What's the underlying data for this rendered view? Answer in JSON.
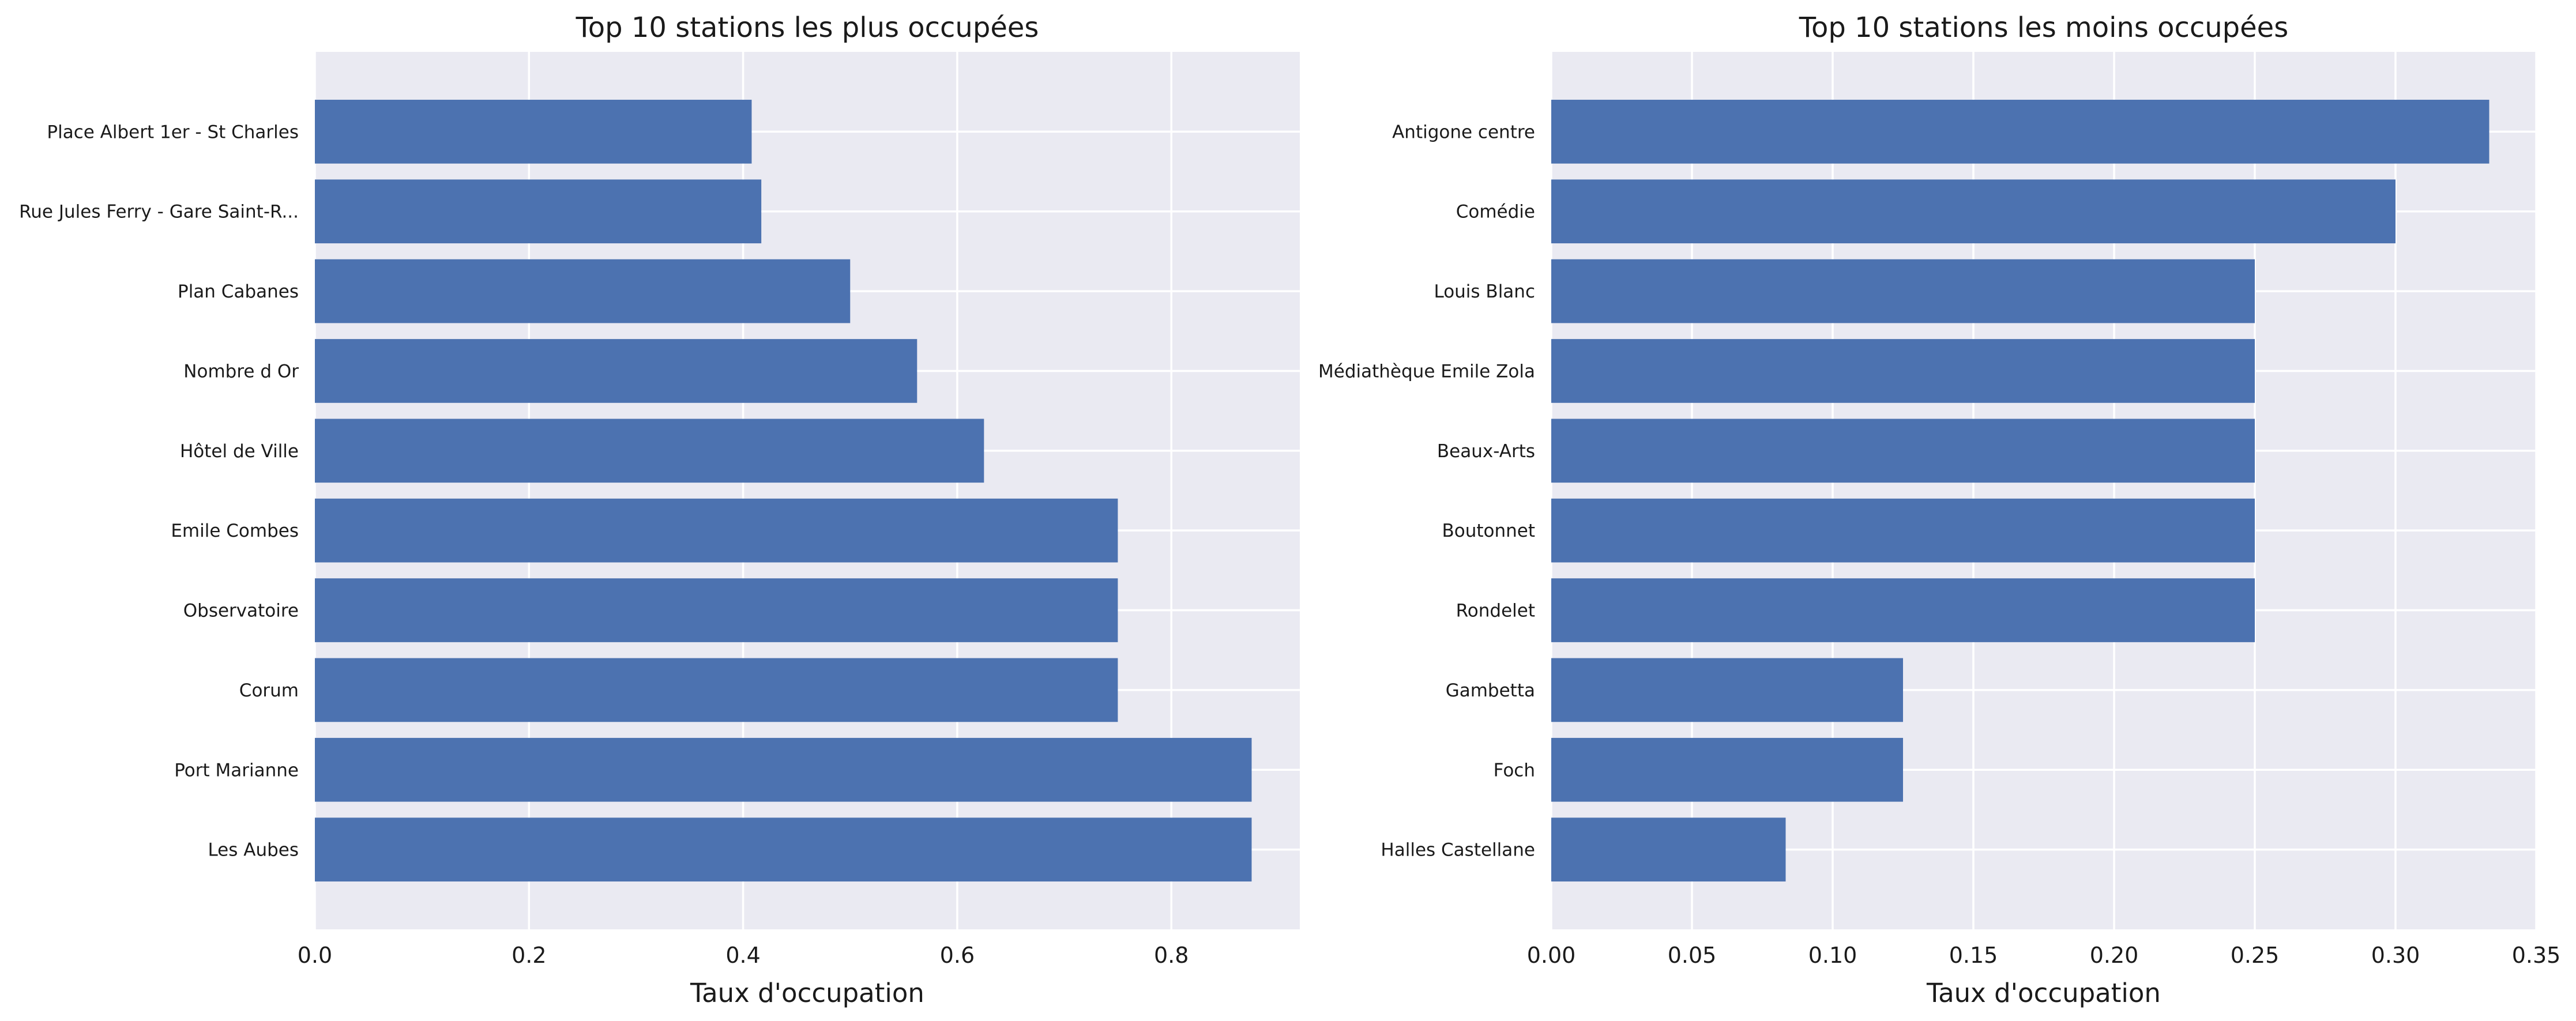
{
  "chart_data": [
    {
      "type": "bar",
      "orientation": "horizontal",
      "title": "Top 10 stations les plus occupées",
      "xlabel": "Taux d'occupation",
      "ylabel": "",
      "xlim": [
        0,
        0.92
      ],
      "xticks": [
        0.0,
        0.2,
        0.4,
        0.6,
        0.8
      ],
      "xtick_labels": [
        "0.0",
        "0.2",
        "0.4",
        "0.6",
        "0.8"
      ],
      "grid": true,
      "bar_color": "#4c72b0",
      "background_color": "#eaeaf2",
      "categories": [
        "Place Albert 1er - St Charles",
        "Rue Jules Ferry - Gare Saint-R...",
        "Plan Cabanes",
        "Nombre d Or",
        "Hôtel de Ville",
        "Emile Combes",
        "Observatoire",
        "Corum",
        "Port Marianne",
        "Les Aubes"
      ],
      "values": [
        0.408,
        0.417,
        0.5,
        0.5625,
        0.625,
        0.75,
        0.75,
        0.75,
        0.875,
        0.875
      ]
    },
    {
      "type": "bar",
      "orientation": "horizontal",
      "title": "Top 10 stations les moins occupées",
      "xlabel": "Taux d'occupation",
      "ylabel": "",
      "xlim": [
        0,
        0.35
      ],
      "xticks": [
        0.0,
        0.05,
        0.1,
        0.15,
        0.2,
        0.25,
        0.3,
        0.35
      ],
      "xtick_labels": [
        "0.00",
        "0.05",
        "0.10",
        "0.15",
        "0.20",
        "0.25",
        "0.30",
        "0.35"
      ],
      "grid": true,
      "bar_color": "#4c72b0",
      "background_color": "#eaeaf2",
      "categories": [
        "Antigone centre",
        "Comédie",
        "Louis Blanc",
        "Médiathèque Emile Zola",
        "Beaux-Arts",
        "Boutonnet",
        "Rondelet",
        "Gambetta",
        "Foch",
        "Halles Castellane"
      ],
      "values": [
        0.3333,
        0.3,
        0.25,
        0.25,
        0.25,
        0.25,
        0.25,
        0.125,
        0.125,
        0.0833
      ]
    }
  ]
}
